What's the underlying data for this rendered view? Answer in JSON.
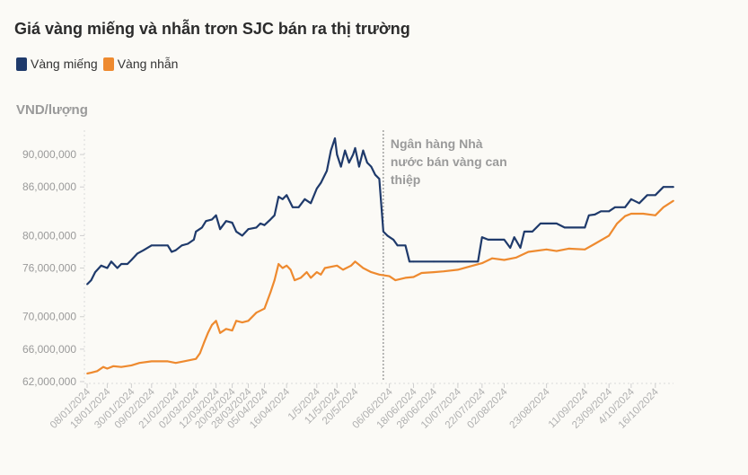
{
  "chart_data": {
    "type": "line",
    "title": "Giá vàng miếng và nhẫn trơn SJC bán ra thị trường",
    "ylabel": "VND/lượng",
    "ylim": [
      62000000,
      93000000
    ],
    "yticks": [
      {
        "value": 62000000,
        "label": "62,000,000"
      },
      {
        "value": 66000000,
        "label": "66,000,000"
      },
      {
        "value": 70000000,
        "label": "70,000,000"
      },
      {
        "value": 76000000,
        "label": "76,000,000"
      },
      {
        "value": 80000000,
        "label": "80,000,000"
      },
      {
        "value": 86000000,
        "label": "86,000,000"
      },
      {
        "value": 90000000,
        "label": "90,000,000"
      }
    ],
    "xticks": [
      {
        "x": "2024-01-08",
        "label": "08/01/2024"
      },
      {
        "x": "2024-01-18",
        "label": "18/01/2024"
      },
      {
        "x": "2024-01-30",
        "label": "30/01/2024"
      },
      {
        "x": "2024-02-09",
        "label": "09/02/2024"
      },
      {
        "x": "2024-02-21",
        "label": "21/02/2024"
      },
      {
        "x": "2024-03-02",
        "label": "02/03/2024"
      },
      {
        "x": "2024-03-12",
        "label": "12/03/2024"
      },
      {
        "x": "2024-03-20",
        "label": "20/03/2024"
      },
      {
        "x": "2024-03-28",
        "label": "28/03/2024"
      },
      {
        "x": "2024-04-05",
        "label": "05/04/2024"
      },
      {
        "x": "2024-04-16",
        "label": "16/04/2024"
      },
      {
        "x": "2024-05-01",
        "label": "1/5/2024"
      },
      {
        "x": "2024-05-11",
        "label": "11/5/2024"
      },
      {
        "x": "2024-05-20",
        "label": "20/5/2024"
      },
      {
        "x": "2024-06-06",
        "label": "06/06/2024"
      },
      {
        "x": "2024-06-18",
        "label": "18/06/2024"
      },
      {
        "x": "2024-06-28",
        "label": "28/06/2024"
      },
      {
        "x": "2024-07-10",
        "label": "10/07/2024"
      },
      {
        "x": "2024-07-22",
        "label": "22/07/2024"
      },
      {
        "x": "2024-08-02",
        "label": "02/08/2024"
      },
      {
        "x": "2024-08-23",
        "label": "23/08/2024"
      },
      {
        "x": "2024-09-11",
        "label": "11/09/2024"
      },
      {
        "x": "2024-09-23",
        "label": "23/09/2024"
      },
      {
        "x": "2024-10-04",
        "label": "4/10/2024"
      },
      {
        "x": "2024-10-16",
        "label": "16/10/2024"
      }
    ],
    "series": [
      {
        "name": "Vàng miếng",
        "color": "#1f3a6b",
        "points": [
          [
            "2024-01-08",
            74000000
          ],
          [
            "2024-01-10",
            74500000
          ],
          [
            "2024-01-12",
            75500000
          ],
          [
            "2024-01-15",
            76300000
          ],
          [
            "2024-01-18",
            76000000
          ],
          [
            "2024-01-20",
            76800000
          ],
          [
            "2024-01-23",
            76000000
          ],
          [
            "2024-01-25",
            76500000
          ],
          [
            "2024-01-28",
            76500000
          ],
          [
            "2024-01-30",
            77000000
          ],
          [
            "2024-02-02",
            77800000
          ],
          [
            "2024-02-05",
            78200000
          ],
          [
            "2024-02-09",
            78800000
          ],
          [
            "2024-02-14",
            78800000
          ],
          [
            "2024-02-17",
            78800000
          ],
          [
            "2024-02-19",
            78000000
          ],
          [
            "2024-02-21",
            78200000
          ],
          [
            "2024-02-24",
            78800000
          ],
          [
            "2024-02-27",
            79000000
          ],
          [
            "2024-03-01",
            79500000
          ],
          [
            "2024-03-02",
            80500000
          ],
          [
            "2024-03-05",
            81000000
          ],
          [
            "2024-03-07",
            81800000
          ],
          [
            "2024-03-10",
            82000000
          ],
          [
            "2024-03-12",
            82500000
          ],
          [
            "2024-03-14",
            80800000
          ],
          [
            "2024-03-17",
            81800000
          ],
          [
            "2024-03-20",
            81600000
          ],
          [
            "2024-03-22",
            80500000
          ],
          [
            "2024-03-25",
            80000000
          ],
          [
            "2024-03-28",
            80800000
          ],
          [
            "2024-04-01",
            81000000
          ],
          [
            "2024-04-03",
            81500000
          ],
          [
            "2024-04-05",
            81300000
          ],
          [
            "2024-04-08",
            82000000
          ],
          [
            "2024-04-10",
            82500000
          ],
          [
            "2024-04-12",
            84800000
          ],
          [
            "2024-04-14",
            84500000
          ],
          [
            "2024-04-16",
            85000000
          ],
          [
            "2024-04-19",
            83500000
          ],
          [
            "2024-04-22",
            83500000
          ],
          [
            "2024-04-25",
            84500000
          ],
          [
            "2024-04-28",
            84000000
          ],
          [
            "2024-05-01",
            85800000
          ],
          [
            "2024-05-03",
            86500000
          ],
          [
            "2024-05-06",
            88000000
          ],
          [
            "2024-05-08",
            90500000
          ],
          [
            "2024-05-10",
            92000000
          ],
          [
            "2024-05-11",
            90000000
          ],
          [
            "2024-05-13",
            88500000
          ],
          [
            "2024-05-15",
            90500000
          ],
          [
            "2024-05-17",
            89000000
          ],
          [
            "2024-05-19",
            90000000
          ],
          [
            "2024-05-20",
            90800000
          ],
          [
            "2024-05-22",
            88500000
          ],
          [
            "2024-05-24",
            90500000
          ],
          [
            "2024-05-26",
            89000000
          ],
          [
            "2024-05-28",
            88500000
          ],
          [
            "2024-05-30",
            87500000
          ],
          [
            "2024-06-01",
            87000000
          ],
          [
            "2024-06-03",
            80500000
          ],
          [
            "2024-06-05",
            80000000
          ],
          [
            "2024-06-08",
            79500000
          ],
          [
            "2024-06-10",
            78800000
          ],
          [
            "2024-06-14",
            78800000
          ],
          [
            "2024-06-16",
            76800000
          ],
          [
            "2024-06-18",
            76800000
          ],
          [
            "2024-06-28",
            76800000
          ],
          [
            "2024-07-10",
            76800000
          ],
          [
            "2024-07-20",
            76800000
          ],
          [
            "2024-07-22",
            79800000
          ],
          [
            "2024-07-25",
            79500000
          ],
          [
            "2024-08-02",
            79500000
          ],
          [
            "2024-08-05",
            78500000
          ],
          [
            "2024-08-07",
            79800000
          ],
          [
            "2024-08-10",
            78500000
          ],
          [
            "2024-08-12",
            80500000
          ],
          [
            "2024-08-16",
            80500000
          ],
          [
            "2024-08-20",
            81500000
          ],
          [
            "2024-08-23",
            81500000
          ],
          [
            "2024-08-28",
            81500000
          ],
          [
            "2024-09-01",
            81000000
          ],
          [
            "2024-09-11",
            81000000
          ],
          [
            "2024-09-13",
            82500000
          ],
          [
            "2024-09-16",
            82600000
          ],
          [
            "2024-09-19",
            83000000
          ],
          [
            "2024-09-23",
            83000000
          ],
          [
            "2024-09-26",
            83500000
          ],
          [
            "2024-10-01",
            83500000
          ],
          [
            "2024-10-04",
            84500000
          ],
          [
            "2024-10-08",
            84000000
          ],
          [
            "2024-10-12",
            85000000
          ],
          [
            "2024-10-16",
            85000000
          ],
          [
            "2024-10-20",
            86000000
          ],
          [
            "2024-10-25",
            86000000
          ]
        ]
      },
      {
        "name": "Vàng nhẫn",
        "color": "#ee8a2f",
        "points": [
          [
            "2024-01-08",
            63000000
          ],
          [
            "2024-01-10",
            63100000
          ],
          [
            "2024-01-13",
            63300000
          ],
          [
            "2024-01-16",
            63800000
          ],
          [
            "2024-01-18",
            63600000
          ],
          [
            "2024-01-21",
            63900000
          ],
          [
            "2024-01-25",
            63800000
          ],
          [
            "2024-01-30",
            64000000
          ],
          [
            "2024-02-03",
            64300000
          ],
          [
            "2024-02-09",
            64500000
          ],
          [
            "2024-02-17",
            64500000
          ],
          [
            "2024-02-21",
            64300000
          ],
          [
            "2024-02-25",
            64500000
          ],
          [
            "2024-03-02",
            64800000
          ],
          [
            "2024-03-04",
            65500000
          ],
          [
            "2024-03-06",
            66800000
          ],
          [
            "2024-03-08",
            68000000
          ],
          [
            "2024-03-10",
            69000000
          ],
          [
            "2024-03-12",
            69500000
          ],
          [
            "2024-03-14",
            68000000
          ],
          [
            "2024-03-17",
            68500000
          ],
          [
            "2024-03-20",
            68300000
          ],
          [
            "2024-03-22",
            69500000
          ],
          [
            "2024-03-25",
            69300000
          ],
          [
            "2024-03-28",
            69500000
          ],
          [
            "2024-04-01",
            70500000
          ],
          [
            "2024-04-05",
            71000000
          ],
          [
            "2024-04-08",
            73000000
          ],
          [
            "2024-04-10",
            74500000
          ],
          [
            "2024-04-12",
            76500000
          ],
          [
            "2024-04-14",
            76000000
          ],
          [
            "2024-04-16",
            76300000
          ],
          [
            "2024-04-18",
            75800000
          ],
          [
            "2024-04-20",
            74500000
          ],
          [
            "2024-04-23",
            74800000
          ],
          [
            "2024-04-26",
            75500000
          ],
          [
            "2024-04-28",
            74800000
          ],
          [
            "2024-05-01",
            75500000
          ],
          [
            "2024-05-03",
            75200000
          ],
          [
            "2024-05-05",
            76000000
          ],
          [
            "2024-05-11",
            76300000
          ],
          [
            "2024-05-14",
            75800000
          ],
          [
            "2024-05-18",
            76300000
          ],
          [
            "2024-05-20",
            76800000
          ],
          [
            "2024-05-24",
            76000000
          ],
          [
            "2024-05-28",
            75500000
          ],
          [
            "2024-06-01",
            75200000
          ],
          [
            "2024-06-06",
            75000000
          ],
          [
            "2024-06-09",
            74500000
          ],
          [
            "2024-06-14",
            74800000
          ],
          [
            "2024-06-18",
            74900000
          ],
          [
            "2024-06-22",
            75400000
          ],
          [
            "2024-06-28",
            75500000
          ],
          [
            "2024-07-03",
            75600000
          ],
          [
            "2024-07-10",
            75800000
          ],
          [
            "2024-07-16",
            76200000
          ],
          [
            "2024-07-22",
            76600000
          ],
          [
            "2024-07-27",
            77200000
          ],
          [
            "2024-08-02",
            77000000
          ],
          [
            "2024-08-08",
            77300000
          ],
          [
            "2024-08-14",
            78000000
          ],
          [
            "2024-08-23",
            78300000
          ],
          [
            "2024-08-28",
            78100000
          ],
          [
            "2024-09-03",
            78400000
          ],
          [
            "2024-09-11",
            78300000
          ],
          [
            "2024-09-16",
            79000000
          ],
          [
            "2024-09-23",
            80000000
          ],
          [
            "2024-09-27",
            81500000
          ],
          [
            "2024-10-01",
            82400000
          ],
          [
            "2024-10-04",
            82700000
          ],
          [
            "2024-10-10",
            82700000
          ],
          [
            "2024-10-16",
            82500000
          ],
          [
            "2024-10-20",
            83500000
          ],
          [
            "2024-10-25",
            84300000
          ]
        ]
      }
    ],
    "annotation": {
      "x": "2024-06-03",
      "lines": [
        "Ngân hàng Nhà",
        "nước bán vàng can",
        "thiệp"
      ]
    },
    "legend_position": "top-left",
    "grid": false
  }
}
